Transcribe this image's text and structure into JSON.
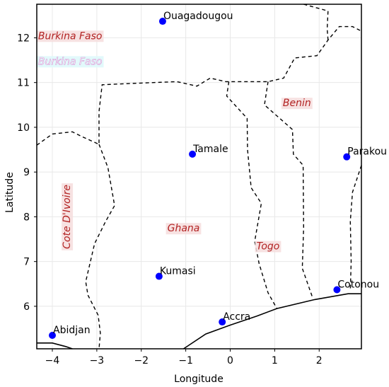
{
  "chart_data": {
    "type": "scatter",
    "xlabel": "Longitude",
    "ylabel": "Latitude",
    "xlim": [
      -4.35,
      2.95
    ],
    "ylim": [
      5.05,
      12.75
    ],
    "xticks": [
      -4,
      -3,
      -2,
      -1,
      0,
      1,
      2
    ],
    "yticks": [
      6,
      7,
      8,
      9,
      10,
      11,
      12
    ],
    "xtick_labels": [
      "−4",
      "−3",
      "−2",
      "−1",
      "0",
      "1",
      "2"
    ],
    "ytick_labels": [
      "6",
      "7",
      "8",
      "9",
      "10",
      "11",
      "12"
    ],
    "grid": true,
    "marker_color": "#0000ff",
    "label_color": "#b22222",
    "cities": [
      {
        "name": "Ouagadougou",
        "lon": -1.52,
        "lat": 12.37
      },
      {
        "name": "Tamale",
        "lon": -0.85,
        "lat": 9.4
      },
      {
        "name": "Parakou",
        "lon": 2.62,
        "lat": 9.34
      },
      {
        "name": "Kumasi",
        "lon": -1.6,
        "lat": 6.67
      },
      {
        "name": "Cotonou",
        "lon": 2.4,
        "lat": 6.37
      },
      {
        "name": "Accra",
        "lon": -0.18,
        "lat": 5.65
      },
      {
        "name": "Abidjan",
        "lon": -4.0,
        "lat": 5.35
      }
    ],
    "countries": [
      {
        "name": "Burkina Faso",
        "lon": -3.6,
        "lat": 12.05,
        "rotation": 0
      },
      {
        "name": "Benin",
        "lon": 1.5,
        "lat": 10.55,
        "rotation": 0
      },
      {
        "name": "Ghana",
        "lon": -1.05,
        "lat": 7.75,
        "rotation": 0
      },
      {
        "name": "Togo",
        "lon": 0.85,
        "lat": 7.35,
        "rotation": 0
      },
      {
        "name": "Cote D'Ivoire",
        "lon": -3.68,
        "lat": 8.0,
        "rotation": -90
      }
    ],
    "ghost_label": {
      "name": "Burkina Faso",
      "lon": -4.32,
      "lat": 11.48
    },
    "borders": [
      [
        [
          -4.35,
          9.6
        ],
        [
          -4.0,
          9.85
        ],
        [
          -3.55,
          9.9
        ],
        [
          -3.35,
          9.8
        ],
        [
          -2.95,
          9.62
        ],
        [
          -2.95,
          10.35
        ],
        [
          -2.88,
          10.95
        ],
        [
          -2.2,
          10.98
        ],
        [
          -1.2,
          11.02
        ],
        [
          -0.75,
          10.92
        ],
        [
          -0.45,
          11.1
        ],
        [
          -0.1,
          11.02
        ],
        [
          0.85,
          11.02
        ],
        [
          1.2,
          11.1
        ],
        [
          1.45,
          11.55
        ],
        [
          1.95,
          11.6
        ],
        [
          2.2,
          11.95
        ],
        [
          2.45,
          12.25
        ],
        [
          2.75,
          12.25
        ],
        [
          2.95,
          12.15
        ]
      ],
      [
        [
          -2.95,
          9.62
        ],
        [
          -2.75,
          9.1
        ],
        [
          -2.6,
          8.25
        ],
        [
          -2.8,
          7.9
        ],
        [
          -3.05,
          7.4
        ],
        [
          -3.25,
          6.55
        ],
        [
          -3.2,
          6.25
        ],
        [
          -2.97,
          5.8
        ],
        [
          -2.92,
          5.4
        ],
        [
          -2.95,
          5.05
        ]
      ],
      [
        [
          -0.03,
          11.02
        ],
        [
          -0.08,
          10.7
        ],
        [
          0.38,
          10.2
        ],
        [
          0.39,
          9.5
        ],
        [
          0.47,
          8.65
        ],
        [
          0.7,
          8.3
        ],
        [
          0.55,
          7.45
        ],
        [
          0.65,
          6.95
        ],
        [
          0.85,
          6.3
        ],
        [
          1.05,
          5.95
        ]
      ],
      [
        [
          0.85,
          11.02
        ],
        [
          0.77,
          10.5
        ],
        [
          1.4,
          9.95
        ],
        [
          1.42,
          9.4
        ],
        [
          1.64,
          9.15
        ],
        [
          1.65,
          7.75
        ],
        [
          1.62,
          6.85
        ],
        [
          1.85,
          6.2
        ]
      ],
      [
        [
          2.95,
          9.15
        ],
        [
          2.75,
          8.55
        ],
        [
          2.7,
          7.9
        ],
        [
          2.72,
          7.0
        ],
        [
          2.7,
          6.35
        ]
      ],
      [
        [
          1.65,
          12.75
        ],
        [
          2.2,
          12.6
        ],
        [
          2.18,
          12.2
        ],
        [
          2.2,
          11.95
        ]
      ]
    ],
    "coastline": [
      [
        [
          -4.35,
          5.18
        ],
        [
          -4.0,
          5.18
        ],
        [
          -3.7,
          5.1
        ],
        [
          -3.55,
          5.05
        ]
      ],
      [
        [
          -1.05,
          5.05
        ],
        [
          -0.55,
          5.38
        ],
        [
          0.0,
          5.58
        ],
        [
          0.6,
          5.78
        ],
        [
          1.05,
          5.95
        ],
        [
          1.9,
          6.15
        ],
        [
          2.65,
          6.28
        ],
        [
          2.95,
          6.28
        ]
      ]
    ]
  }
}
